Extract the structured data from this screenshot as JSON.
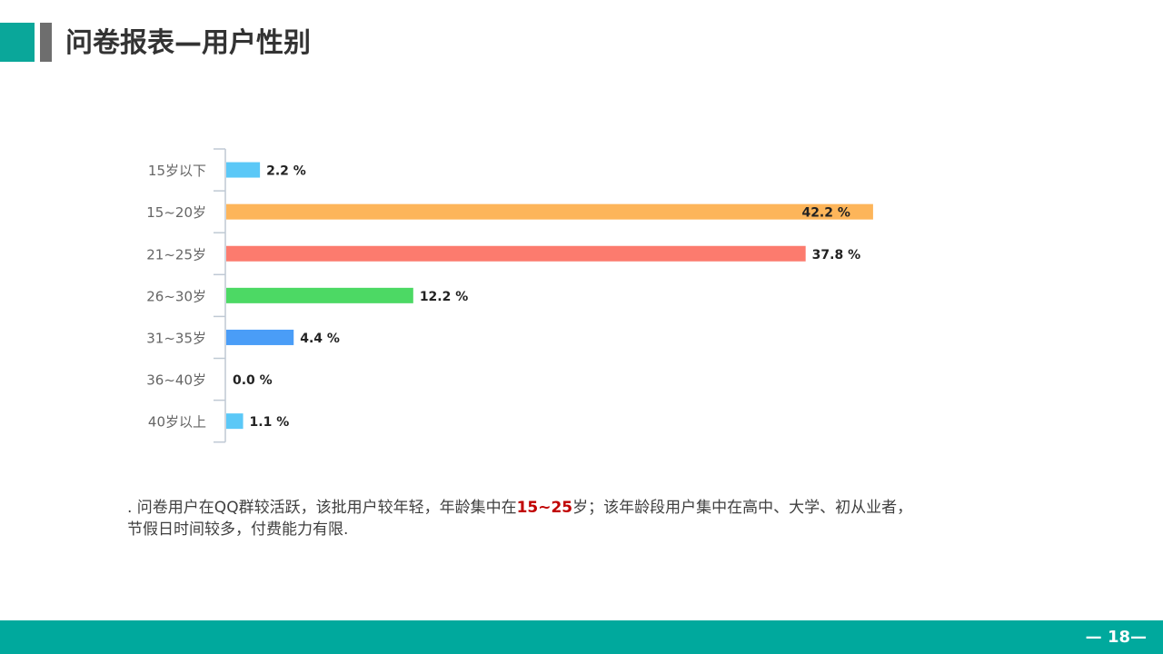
{
  "header": {
    "title": "问卷报表—用户性别"
  },
  "chart_data": {
    "type": "bar",
    "orientation": "horizontal",
    "categories": [
      "15岁以下",
      "15~20岁",
      "21~25岁",
      "26~30岁",
      "31~35岁",
      "36~40岁",
      "40岁以上"
    ],
    "values": [
      2.2,
      42.2,
      37.8,
      12.2,
      4.4,
      0.0,
      1.1
    ],
    "value_labels": [
      "2.2 %",
      "42.2 %",
      "37.8 %",
      "12.2 %",
      "4.4 %",
      "0.0 %",
      "1.1 %"
    ],
    "colors": [
      "#5BC8F7",
      "#FDB55A",
      "#FC7B6E",
      "#4CD964",
      "#4A9DF7",
      "#5BC8F7",
      "#5BC8F7"
    ],
    "grid": false,
    "legend": "none"
  },
  "description": {
    "prefix": ". 问卷用户在QQ群较活跃，该批用户较年轻，年龄集中在",
    "highlight": "15~25",
    "suffix": "岁；该年龄段用户集中在高中、大学、初从业者，节假日时间较多，付费能力有限."
  },
  "footer": {
    "page_number": "— 18—"
  }
}
